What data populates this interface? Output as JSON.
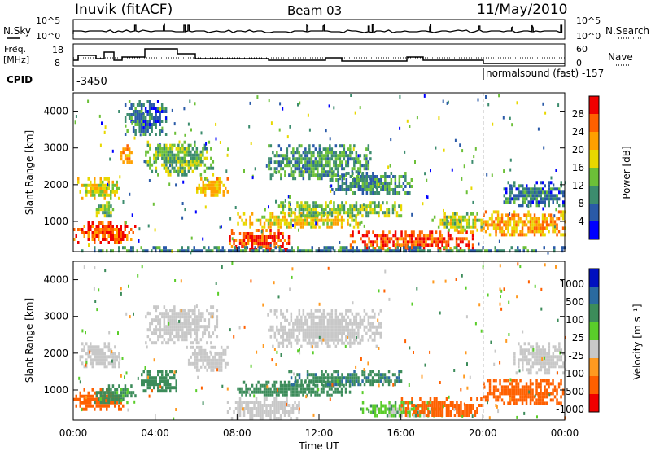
{
  "header": {
    "station": "Inuvik (fitACF)",
    "beam": "Beam 03",
    "date": "11/May/2010"
  },
  "top_panels": {
    "nsky": {
      "label": "N.Sky",
      "ticks": [
        "10^5",
        "10^0"
      ]
    },
    "nsearch": {
      "label": "N.Search",
      "ticks": [
        "10^5",
        "10^0"
      ]
    },
    "freq": {
      "label_line1": "Freq.",
      "label_line2": "[MHz]",
      "ticks": [
        "18",
        "8"
      ]
    },
    "nave": {
      "label": "Nave",
      "ticks": [
        "60",
        "0"
      ]
    },
    "cpid": {
      "label": "CPID",
      "left_value": "-3450",
      "right_value": "normalsound (fast) -157"
    }
  },
  "x_axis": {
    "label": "Time UT",
    "ticks": [
      "00:00",
      "04:00",
      "08:00",
      "12:00",
      "16:00",
      "20:00",
      "00:00"
    ]
  },
  "colors": {
    "power": [
      "#0000ff",
      "#2a5aa8",
      "#3c8c6e",
      "#6cc038",
      "#e8d800",
      "#ffa000",
      "#ff6000",
      "#f00000"
    ],
    "velocity": [
      "#f00000",
      "#ff6000",
      "#ff9a20",
      "#c8c8c8",
      "#5acd2a",
      "#3c8c5a",
      "#2a6aa0",
      "#0010c0"
    ]
  },
  "chart_data": [
    {
      "type": "heatmap",
      "panel": "power",
      "ylabel": "Slant Range [km]",
      "yticks": [
        "1000",
        "2000",
        "3000",
        "4000"
      ],
      "ylim": [
        180,
        4500
      ],
      "xlim_hours": [
        0,
        24
      ],
      "colorbar": {
        "label": "Power [dB]",
        "ticks": [
          "4",
          "8",
          "12",
          "16",
          "20",
          "24",
          "28"
        ],
        "range": [
          0,
          32
        ]
      },
      "blobs": [
        {
          "t0": 0.0,
          "t1": 3.0,
          "r0": 450,
          "r1": 1000,
          "value": 27
        },
        {
          "t0": 0.2,
          "t1": 2.2,
          "r0": 1650,
          "r1": 2200,
          "value": 18
        },
        {
          "t0": 1.0,
          "t1": 2.0,
          "r0": 1150,
          "r1": 1550,
          "value": 15
        },
        {
          "t0": 2.3,
          "t1": 2.9,
          "r0": 2600,
          "r1": 3100,
          "value": 22
        },
        {
          "t0": 2.5,
          "t1": 4.5,
          "r0": 3400,
          "r1": 4300,
          "value": 8
        },
        {
          "t0": 3.5,
          "t1": 6.8,
          "r0": 2300,
          "r1": 3200,
          "value": 13
        },
        {
          "t0": 6.0,
          "t1": 7.5,
          "r0": 1700,
          "r1": 2200,
          "value": 20
        },
        {
          "t0": 7.5,
          "t1": 10.5,
          "r0": 250,
          "r1": 800,
          "value": 27
        },
        {
          "t0": 8.0,
          "t1": 14.0,
          "r0": 850,
          "r1": 1250,
          "value": 19
        },
        {
          "t0": 9.5,
          "t1": 14.5,
          "r0": 2200,
          "r1": 3100,
          "value": 11
        },
        {
          "t0": 10.0,
          "t1": 16.0,
          "r0": 1150,
          "r1": 1550,
          "value": 14
        },
        {
          "t0": 12.5,
          "t1": 16.5,
          "r0": 1750,
          "r1": 2350,
          "value": 10
        },
        {
          "t0": 13.5,
          "t1": 19.5,
          "r0": 300,
          "r1": 750,
          "value": 27
        },
        {
          "t0": 17.5,
          "t1": 20.0,
          "r0": 800,
          "r1": 1250,
          "value": 16
        },
        {
          "t0": 20.0,
          "t1": 24.0,
          "r0": 600,
          "r1": 1300,
          "value": 22
        },
        {
          "t0": 21.0,
          "t1": 24.0,
          "r0": 1400,
          "r1": 2100,
          "value": 8
        },
        {
          "t0": 0.0,
          "t1": 24.0,
          "r0": 200,
          "r1": 330,
          "value": 9
        }
      ]
    },
    {
      "type": "heatmap",
      "panel": "velocity",
      "ylabel": "Slant Range [km]",
      "yticks": [
        "1000",
        "2000",
        "3000",
        "4000"
      ],
      "ylim": [
        180,
        4500
      ],
      "xlim_hours": [
        0,
        24
      ],
      "colorbar": {
        "label": "Velocity [m s⁻¹]",
        "ticks": [
          "1000",
          "500",
          "100",
          "25",
          "-25",
          "-100",
          "-500",
          "-1000"
        ]
      },
      "blobs": [
        {
          "t0": 0.0,
          "t1": 2.5,
          "r0": 500,
          "r1": 1050,
          "value": -300
        },
        {
          "t0": 1.0,
          "t1": 3.0,
          "r0": 650,
          "r1": 1150,
          "value": 200
        },
        {
          "t0": 0.3,
          "t1": 2.2,
          "r0": 1650,
          "r1": 2300,
          "value": 0
        },
        {
          "t0": 3.3,
          "t1": 5.0,
          "r0": 950,
          "r1": 1550,
          "value": 300
        },
        {
          "t0": 3.5,
          "t1": 7.0,
          "r0": 2300,
          "r1": 3300,
          "value": 0
        },
        {
          "t0": 5.5,
          "t1": 7.5,
          "r0": 1500,
          "r1": 2200,
          "value": 0
        },
        {
          "t0": 7.5,
          "t1": 11.0,
          "r0": 250,
          "r1": 800,
          "value": 0
        },
        {
          "t0": 8.0,
          "t1": 13.5,
          "r0": 850,
          "r1": 1250,
          "value": 250
        },
        {
          "t0": 9.5,
          "t1": 15.0,
          "r0": 2200,
          "r1": 3200,
          "value": 0
        },
        {
          "t0": 10.5,
          "t1": 16.0,
          "r0": 1150,
          "r1": 1550,
          "value": 400
        },
        {
          "t0": 14.0,
          "t1": 18.0,
          "r0": 300,
          "r1": 700,
          "value": 60
        },
        {
          "t0": 16.0,
          "t1": 20.0,
          "r0": 300,
          "r1": 800,
          "value": -300
        },
        {
          "t0": 20.0,
          "t1": 24.0,
          "r0": 600,
          "r1": 1300,
          "value": -250
        },
        {
          "t0": 21.5,
          "t1": 24.0,
          "r0": 1500,
          "r1": 2300,
          "value": 0
        }
      ]
    }
  ]
}
